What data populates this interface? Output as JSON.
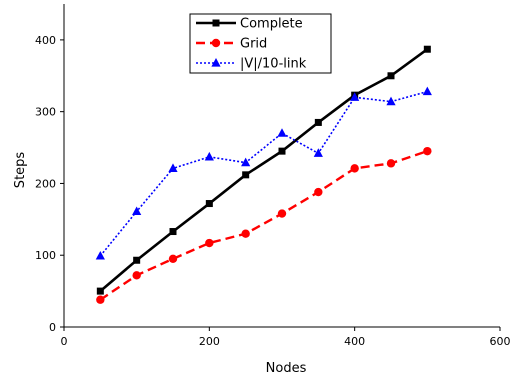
{
  "chart_data": {
    "type": "line",
    "xlabel": "Nodes",
    "ylabel": "Steps",
    "xlim": [
      0,
      600
    ],
    "ylim": [
      0,
      450
    ],
    "xticks": [
      0,
      200,
      400,
      600
    ],
    "yticks": [
      0,
      100,
      200,
      300,
      400
    ],
    "grid": false,
    "legend_position": "top-center",
    "x": [
      50,
      100,
      150,
      200,
      250,
      300,
      350,
      400,
      450,
      500
    ],
    "series": [
      {
        "name": "Complete",
        "color": "#000000",
        "style": "solid",
        "marker": "square",
        "values": [
          50,
          93,
          133,
          172,
          212,
          245,
          285,
          323,
          350,
          387
        ]
      },
      {
        "name": "Grid",
        "color": "#ff0000",
        "style": "dashed",
        "marker": "circle",
        "values": [
          38,
          72,
          95,
          117,
          130,
          158,
          188,
          221,
          228,
          245
        ]
      },
      {
        "name": "|V|/10-link",
        "color": "#0000ff",
        "style": "dotted",
        "marker": "triangle",
        "values": [
          99,
          161,
          221,
          237,
          229,
          270,
          242,
          320,
          314,
          328
        ]
      }
    ]
  }
}
